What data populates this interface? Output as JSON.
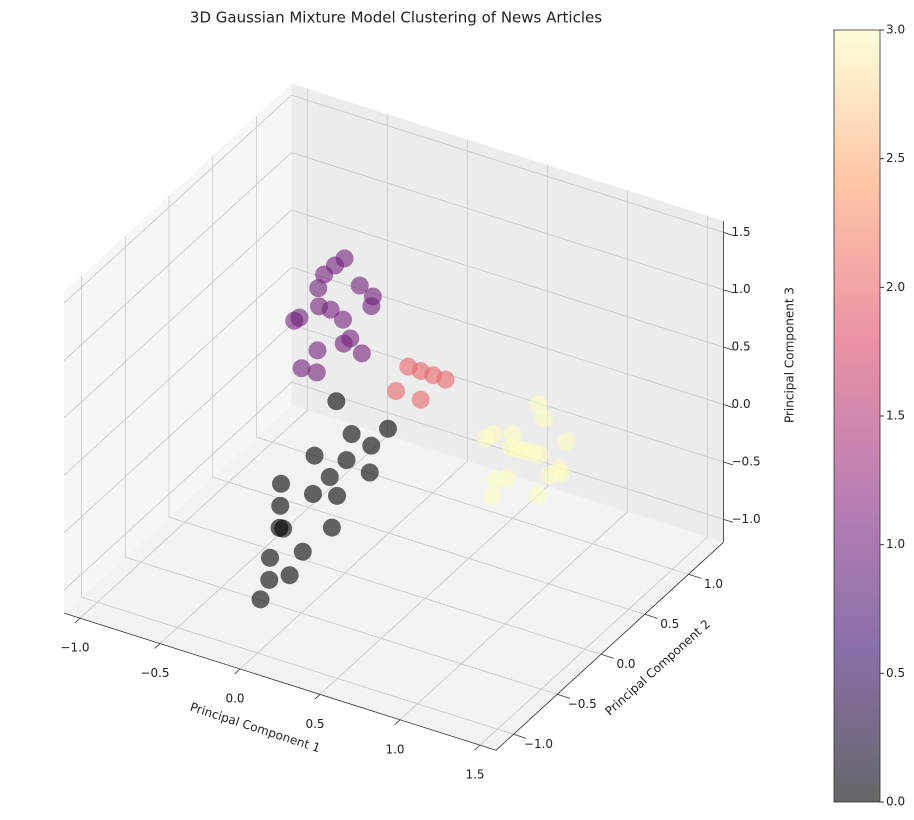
{
  "chart_data": {
    "type": "scatter3d",
    "title": "3D Gaussian Mixture Model Clustering of News Articles",
    "xlabel": "Principal Component 1",
    "ylabel": "Principal Component 2",
    "zlabel": "Principal Component 3",
    "xlim": [
      -1.1,
      1.6
    ],
    "ylim": [
      -1.2,
      1.4
    ],
    "zlim": [
      -1.2,
      1.6
    ],
    "xticks": [
      {
        "value": -1,
        "label": "−1.0"
      },
      {
        "value": -0.5,
        "label": "−0.5"
      },
      {
        "value": 0,
        "label": "0.0"
      },
      0.5,
      {
        "value": 1,
        "label": "1.0"
      },
      1.5
    ],
    "yticks": [
      {
        "value": -1,
        "label": "−1.0"
      },
      {
        "value": -0.5,
        "label": "−0.5"
      },
      {
        "value": 0,
        "label": "0.0"
      },
      0.5,
      {
        "value": 1,
        "label": "1.0"
      }
    ],
    "zticks": [
      {
        "value": -1,
        "label": "−1.0"
      },
      {
        "value": -0.5,
        "label": "−0.5"
      },
      {
        "value": 0,
        "label": "0.0"
      },
      0.5,
      {
        "value": 1,
        "label": "1.0"
      },
      1.5
    ],
    "grid": true,
    "alpha": 0.6,
    "colormap": [
      "#000004",
      "#3b0f70",
      "#8c2981",
      "#de4968",
      "#fe9f6d",
      "#fcfdbf"
    ],
    "clim": [
      0,
      3
    ],
    "cticks": [
      {
        "value": 0,
        "label": "0.0"
      },
      0.5,
      {
        "value": 1,
        "label": "1.0"
      },
      1.5,
      {
        "value": 2,
        "label": "2.0"
      },
      2.5,
      {
        "value": 3,
        "label": "3.0"
      }
    ],
    "x": [
      -0.6,
      -0.4,
      -0.5,
      -0.7,
      -0.3,
      -0.55,
      -0.45,
      -0.65,
      -0.35,
      -0.5,
      -0.6,
      -0.4,
      -0.5,
      -0.75,
      -0.25,
      -0.5,
      -0.55,
      -0.45,
      -0.2,
      -0.1,
      -0.3,
      0.0,
      -0.25,
      -0.15,
      -0.35,
      0.05,
      -0.2,
      -0.1,
      -0.3,
      -0.05,
      -0.2,
      -0.4,
      0.1,
      -0.15,
      -0.25,
      -0.1,
      -0.3,
      0.0,
      0.8,
      0.9,
      0.7,
      1.0,
      0.6,
      0.85,
      0.75,
      0.95,
      0.65,
      0.8,
      1.05,
      0.7,
      0.9,
      0.55,
      0.8,
      0.85,
      0.75,
      1.0,
      0.2,
      0.25,
      0.15,
      0.3,
      0.1,
      0.2
    ],
    "y": [
      0.8,
      0.9,
      0.6,
      0.7,
      0.85,
      1.0,
      0.5,
      0.95,
      0.7,
      0.8,
      0.6,
      1.05,
      0.75,
      0.85,
      0.65,
      0.9,
      0.7,
      0.8,
      0.0,
      0.2,
      -0.2,
      0.3,
      -0.4,
      0.1,
      -0.1,
      0.4,
      -0.5,
      -0.3,
      0.2,
      0.0,
      -0.6,
      0.0,
      0.1,
      0.35,
      -0.25,
      -0.45,
      0.45,
      -0.15,
      0.6,
      0.5,
      0.7,
      0.4,
      0.8,
      0.3,
      0.9,
      0.6,
      0.5,
      0.75,
      0.55,
      0.4,
      0.8,
      0.6,
      0.45,
      0.65,
      0.35,
      0.7,
      0.5,
      0.55,
      0.45,
      0.6,
      0.4,
      0.5
    ],
    "z": [
      0.3,
      0.5,
      0.1,
      0.2,
      0.4,
      0.6,
      0.0,
      0.45,
      0.2,
      0.7,
      -0.1,
      0.3,
      0.35,
      0.1,
      0.15,
      -0.05,
      0.55,
      0.25,
      -0.6,
      -0.4,
      -0.8,
      -0.3,
      -0.9,
      -0.5,
      -0.7,
      -0.2,
      -1.0,
      -0.85,
      -0.45,
      -0.55,
      -1.1,
      -0.6,
      -0.35,
      -0.3,
      -0.75,
      -0.95,
      -0.15,
      -0.7,
      -0.2,
      -0.1,
      -0.3,
      0.0,
      -0.4,
      -0.2,
      -0.15,
      -0.35,
      -0.05,
      0.1,
      -0.25,
      -0.5,
      -0.45,
      -0.2,
      0.05,
      -0.6,
      -0.3,
      -0.1,
      0.3,
      0.25,
      0.35,
      0.2,
      0.15,
      0.05
    ],
    "color_values": [
      1,
      1,
      1,
      1,
      1,
      1,
      1,
      1,
      1,
      1,
      1,
      1,
      1,
      1,
      1,
      1,
      1,
      1,
      0,
      0,
      0,
      0,
      0,
      0,
      0,
      0,
      0,
      0,
      0,
      0,
      0,
      0,
      0,
      0,
      0,
      0,
      0,
      0,
      3,
      3,
      3,
      3,
      3,
      3,
      3,
      3,
      3,
      3,
      3,
      3,
      3,
      3,
      3,
      3,
      3,
      3,
      2,
      2,
      2,
      2,
      2,
      2
    ]
  }
}
